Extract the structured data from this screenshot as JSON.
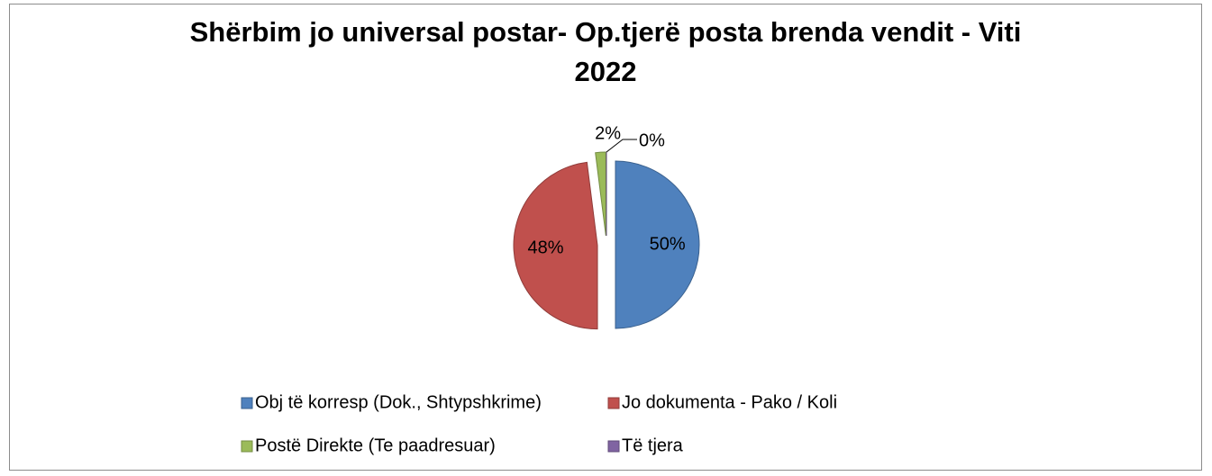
{
  "chart_data": {
    "type": "pie",
    "title": "Shërbim jo universal postar- Op.tjerë posta brenda vendit - Viti 2022",
    "categories": [
      "Obj të korresp (Dok., Shtypshkrime)",
      "Jo dokumenta - Pako / Koli",
      "Postë Direkte (Te paadresuar)",
      "Të tjera"
    ],
    "values": [
      50,
      48,
      2,
      0
    ],
    "value_labels": [
      "50%",
      "48%",
      "2%",
      "0%"
    ],
    "colors": [
      "#4f81bd",
      "#c0504d",
      "#9bbb59",
      "#8064a2"
    ],
    "legend": "bottom"
  }
}
